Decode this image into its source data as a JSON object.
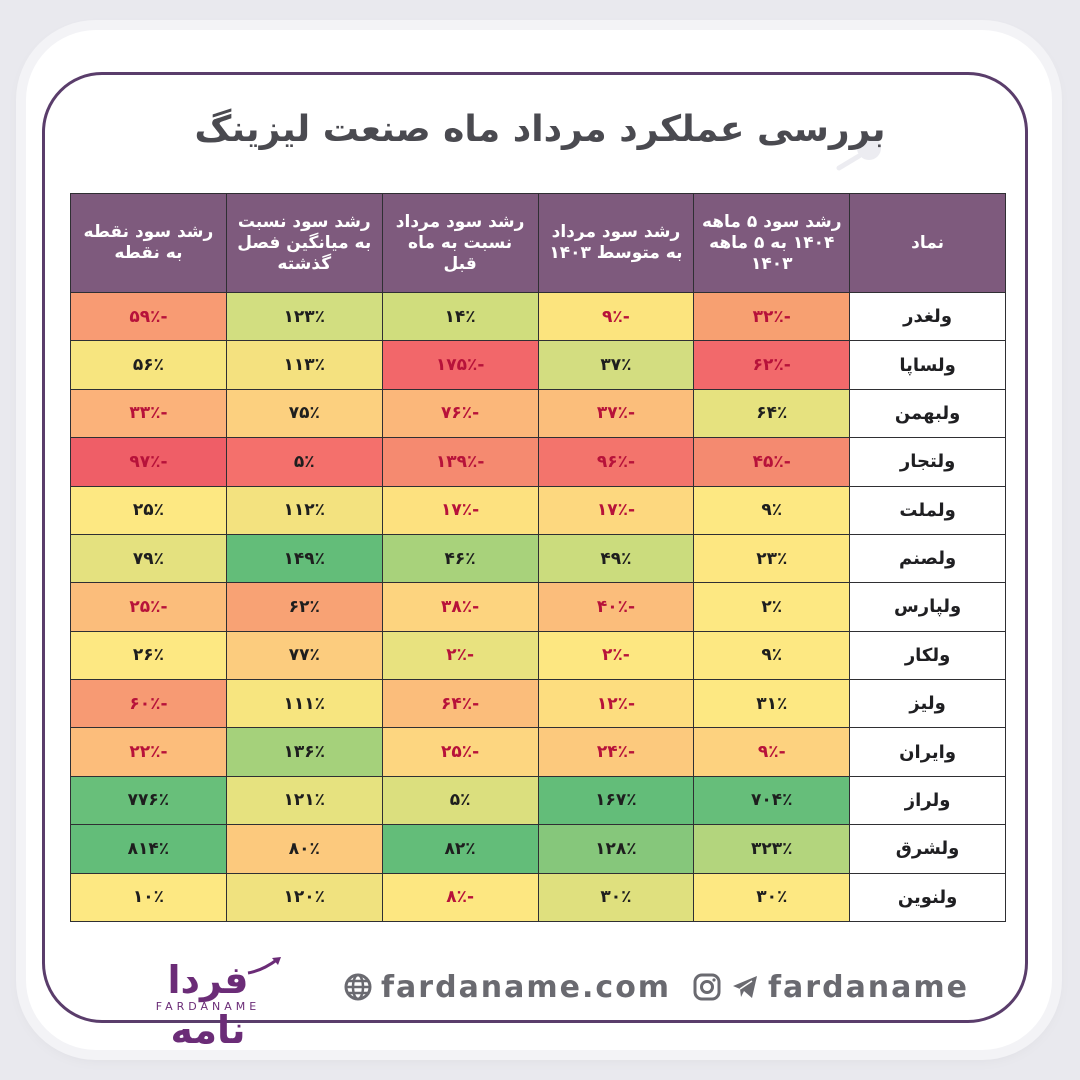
{
  "title": "بررسی عملکرد مرداد ماه صنعت لیزینگ",
  "headers": [
    "نماد",
    "رشد سود ۵ ماهه ۱۴۰۴ به ۵ ماهه ۱۴۰۳",
    "رشد سود مرداد به متوسط ۱۴۰۳",
    "رشد سود مرداد نسبت به ماه قبل",
    "رشد سود نسبت به میانگین فصل گذشته",
    "رشد سود نقطه به نقطه"
  ],
  "rows": [
    {
      "symbol": "ولغدر",
      "cells": [
        {
          "text": "-۳۲٪",
          "color": "#f7a071"
        },
        {
          "text": "-۹٪",
          "color": "#fce47e"
        },
        {
          "text": "۱۴٪",
          "color": "#d0dd7d"
        },
        {
          "text": "۱۲۳٪",
          "color": "#d2de80"
        },
        {
          "text": "-۵۹٪",
          "color": "#f89b73"
        }
      ]
    },
    {
      "symbol": "ولساپا",
      "cells": [
        {
          "text": "-۶۲٪",
          "color": "#f2696b"
        },
        {
          "text": "۳۷٪",
          "color": "#d3dd80"
        },
        {
          "text": "-۱۷۵٪",
          "color": "#f2676a"
        },
        {
          "text": "۱۱۳٪",
          "color": "#f4e17f"
        },
        {
          "text": "۵۶٪",
          "color": "#f7e57f"
        }
      ]
    },
    {
      "symbol": "ولبهمن",
      "cells": [
        {
          "text": "۶۴٪",
          "color": "#e6e27f"
        },
        {
          "text": "-۳۷٪",
          "color": "#fbbe7b"
        },
        {
          "text": "-۷۶٪",
          "color": "#fbb77a"
        },
        {
          "text": "۷۵٪",
          "color": "#fcd07f"
        },
        {
          "text": "-۳۳٪",
          "color": "#fbb27a"
        }
      ]
    },
    {
      "symbol": "ولتجار",
      "cells": [
        {
          "text": "-۴۵٪",
          "color": "#f48a70"
        },
        {
          "text": "-۹۶٪",
          "color": "#f3746c"
        },
        {
          "text": "-۱۳۹٪",
          "color": "#f58a70"
        },
        {
          "text": "۵٪",
          "color": "#f4706c"
        },
        {
          "text": "-۹۷٪",
          "color": "#ef5e67"
        }
      ]
    },
    {
      "symbol": "ولملت",
      "cells": [
        {
          "text": "۹٪",
          "color": "#fde882"
        },
        {
          "text": "-۱۷٪",
          "color": "#fdd87f"
        },
        {
          "text": "-۱۷٪",
          "color": "#fde17f"
        },
        {
          "text": "۱۱۲٪",
          "color": "#f3e27f"
        },
        {
          "text": "۲۵٪",
          "color": "#fde882"
        }
      ]
    },
    {
      "symbol": "ولصنم",
      "cells": [
        {
          "text": "۲۳٪",
          "color": "#fde781"
        },
        {
          "text": "۴۹٪",
          "color": "#cbdc7d"
        },
        {
          "text": "۴۶٪",
          "color": "#a8d27b"
        },
        {
          "text": "۱۴۹٪",
          "color": "#63bd79"
        },
        {
          "text": "۷۹٪",
          "color": "#e4e17f"
        }
      ]
    },
    {
      "symbol": "ولپارس",
      "cells": [
        {
          "text": "۲٪",
          "color": "#fde882"
        },
        {
          "text": "-۴۰٪",
          "color": "#fbbd7b"
        },
        {
          "text": "-۳۸٪",
          "color": "#fdd47f"
        },
        {
          "text": "۶۲٪",
          "color": "#f8a274"
        },
        {
          "text": "-۲۵٪",
          "color": "#fbbd7b"
        }
      ]
    },
    {
      "symbol": "ولکار",
      "cells": [
        {
          "text": "۹٪",
          "color": "#fde882"
        },
        {
          "text": "-۲٪",
          "color": "#fde781"
        },
        {
          "text": "-۲٪",
          "color": "#e8e27f"
        },
        {
          "text": "۷۷٪",
          "color": "#fccc7e"
        },
        {
          "text": "۲۶٪",
          "color": "#fde882"
        }
      ]
    },
    {
      "symbol": "ولیز",
      "cells": [
        {
          "text": "۳۱٪",
          "color": "#fde882"
        },
        {
          "text": "-۱۲٪",
          "color": "#fddd7f"
        },
        {
          "text": "-۶۴٪",
          "color": "#fbbd7b"
        },
        {
          "text": "۱۱۱٪",
          "color": "#f7e57f"
        },
        {
          "text": "-۶۰٪",
          "color": "#f79a73"
        }
      ]
    },
    {
      "symbol": "وایران",
      "cells": [
        {
          "text": "-۹٪",
          "color": "#fdd27f"
        },
        {
          "text": "-۲۴٪",
          "color": "#fcc97d"
        },
        {
          "text": "-۲۵٪",
          "color": "#fdd680"
        },
        {
          "text": "۱۳۶٪",
          "color": "#a5d17b"
        },
        {
          "text": "-۲۲٪",
          "color": "#fcbd7b"
        }
      ]
    },
    {
      "symbol": "ولراز",
      "cells": [
        {
          "text": "۷۰۴٪",
          "color": "#66be7a"
        },
        {
          "text": "۱۶۷٪",
          "color": "#63bd79"
        },
        {
          "text": "۵٪",
          "color": "#dbdf7e"
        },
        {
          "text": "۱۲۱٪",
          "color": "#e6e27f"
        },
        {
          "text": "۷۷۶٪",
          "color": "#68bf7a"
        }
      ]
    },
    {
      "symbol": "ولشرق",
      "cells": [
        {
          "text": "۳۲۳٪",
          "color": "#b3d57d"
        },
        {
          "text": "۱۲۸٪",
          "color": "#86c77b"
        },
        {
          "text": "۸۲٪",
          "color": "#63bd79"
        },
        {
          "text": "۸۰٪",
          "color": "#fcc97d"
        },
        {
          "text": "۸۱۴٪",
          "color": "#63bd79"
        }
      ]
    },
    {
      "symbol": "ولنوین",
      "cells": [
        {
          "text": "۳۰٪",
          "color": "#fde882"
        },
        {
          "text": "۳۰٪",
          "color": "#dfe07e"
        },
        {
          "text": "-۸٪",
          "color": "#fde781"
        },
        {
          "text": "۱۲۰٪",
          "color": "#f0e27f"
        },
        {
          "text": "۱۰٪",
          "color": "#fde882"
        }
      ]
    }
  ],
  "footer": {
    "social": "fardaname",
    "website": "fardaname.com",
    "logo_fa": "فردا نامه",
    "logo_en": "FARDANAME",
    "icons": {
      "telegram": "telegram-icon",
      "instagram": "instagram-icon",
      "globe": "globe-icon"
    }
  }
}
